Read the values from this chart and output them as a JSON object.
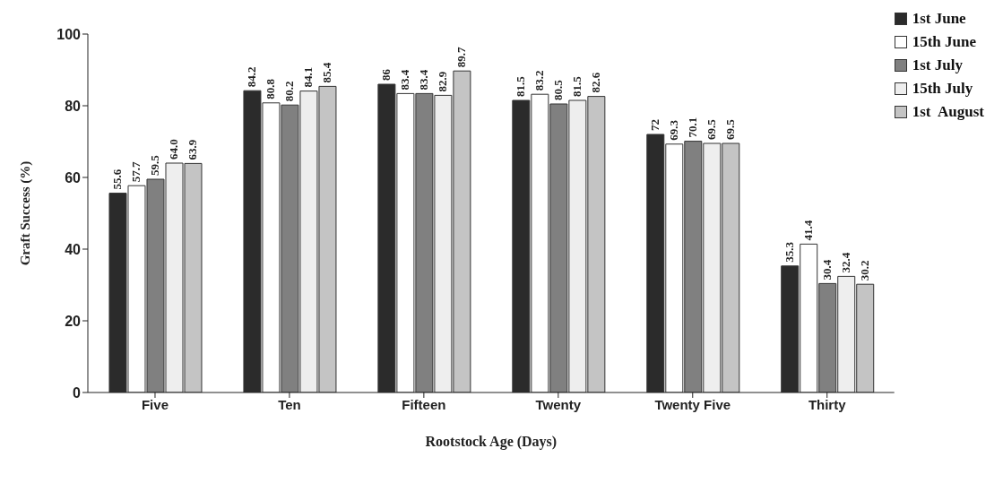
{
  "chart_data": {
    "type": "bar",
    "xlabel": "Rootstock Age (Days)",
    "ylabel": "Graft Success (%)",
    "categories": [
      "Five",
      "Ten",
      "Fifteen",
      "Twenty",
      "Twenty Five",
      "Thirty"
    ],
    "series": [
      {
        "name": "1st June",
        "color": "#2b2b2b",
        "values": [
          55.6,
          84.2,
          86,
          81.5,
          72,
          35.3
        ],
        "value_labels": [
          "55.6",
          "84.2",
          "86",
          "81.5",
          "72",
          "35.3"
        ]
      },
      {
        "name": "15th June",
        "color": "#ffffff",
        "values": [
          57.7,
          80.8,
          83.4,
          83.2,
          69.3,
          41.4
        ],
        "value_labels": [
          "57.7",
          "80.8",
          "83.4",
          "83.2",
          "69.3",
          "41.4"
        ]
      },
      {
        "name": "1st July",
        "color": "#808080",
        "values": [
          59.5,
          80.2,
          83.4,
          80.5,
          70.1,
          30.4
        ],
        "value_labels": [
          "59.5",
          "80.2",
          "83.4",
          "80.5",
          "70.1",
          "30.4"
        ]
      },
      {
        "name": "15th July",
        "color": "#eeeeee",
        "values": [
          64.0,
          84.1,
          82.9,
          81.5,
          69.5,
          32.4
        ],
        "value_labels": [
          "64.0",
          "84.1",
          "82.9",
          "81.5",
          "69.5",
          "32.4"
        ]
      },
      {
        "name": "1st  August",
        "color": "#c4c4c4",
        "values": [
          63.9,
          85.4,
          89.7,
          82.6,
          69.5,
          30.2
        ],
        "value_labels": [
          "63.9",
          "85.4",
          "89.7",
          "82.6",
          "69.5",
          "30.2"
        ]
      }
    ],
    "ylim": [
      0,
      100
    ],
    "yticks": [
      0,
      20,
      40,
      60,
      80,
      100
    ],
    "grid": false,
    "legend": "top right"
  }
}
